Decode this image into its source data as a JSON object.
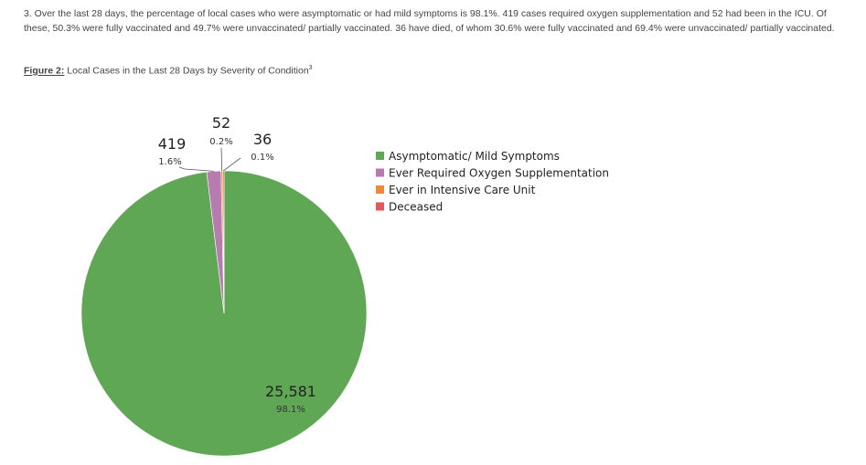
{
  "paragraph": "3. Over the last 28 days, the percentage of local cases who were asymptomatic or had mild symptoms is 98.1%. 419 cases required oxygen supplementation and 52 had been in the ICU. Of these, 50.3% were fully vaccinated and 49.7% were unvaccinated/ partially vaccinated. 36 have died, of whom 30.6% were fully vaccinated and 69.4% were unvaccinated/ partially vaccinated.",
  "figure": {
    "label": "Figure 2:",
    "caption": "Local Cases in the Last 28 Days by Severity of Condition",
    "footnote_mark": "3"
  },
  "chart_data": {
    "type": "pie",
    "categories": [
      "Asymptomatic/ Mild Symptoms",
      "Ever Required Oxygen Supplementation",
      "Ever in Intensive Care Unit",
      "Deceased"
    ],
    "values": [
      25581,
      419,
      52,
      36
    ],
    "value_labels": [
      "25,581",
      "419",
      "52",
      "36"
    ],
    "percent_labels": [
      "98.1%",
      "1.6%",
      "0.2%",
      "0.1%"
    ],
    "colors": [
      "#5fa655",
      "#b77bb0",
      "#f0883a",
      "#e05a5a"
    ],
    "legend_placement": "right"
  }
}
